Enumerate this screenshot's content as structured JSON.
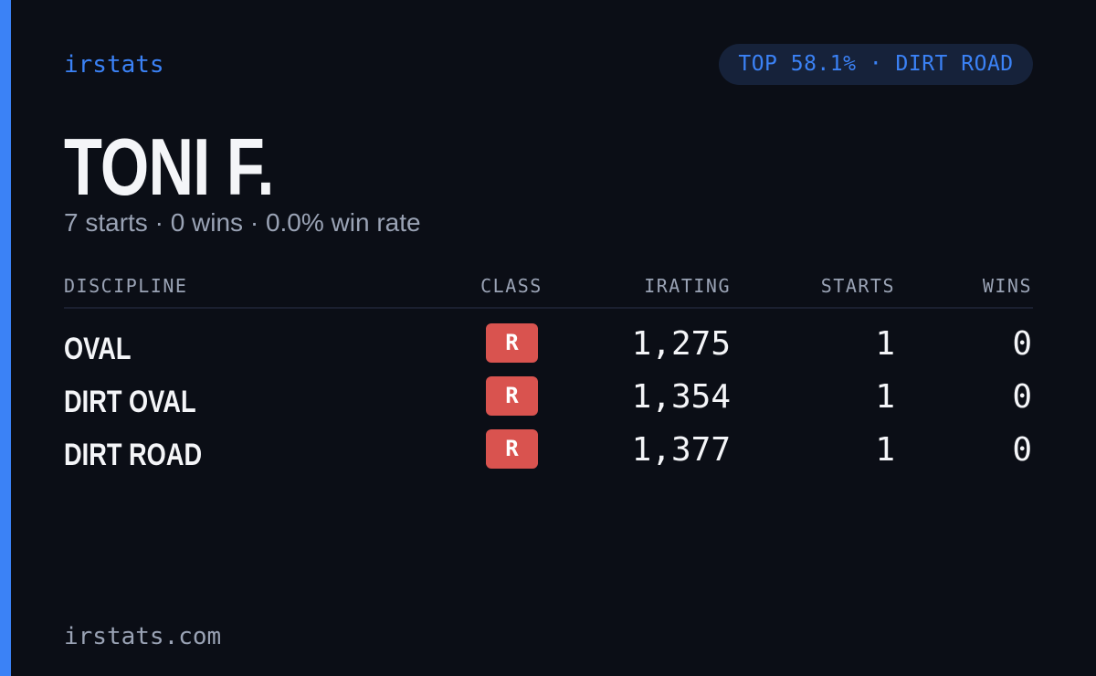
{
  "brand": "irstats",
  "badge": "TOP 58.1% · DIRT ROAD",
  "name": "TONI F.",
  "summary": "7 starts · 0 wins · 0.0% win rate",
  "table": {
    "columns": [
      "DISCIPLINE",
      "CLASS",
      "IRATING",
      "STARTS",
      "WINS"
    ],
    "rows": [
      [
        "OVAL",
        "R",
        "1,275",
        "1",
        "0"
      ],
      [
        "DIRT OVAL",
        "R",
        "1,354",
        "1",
        "0"
      ],
      [
        "DIRT ROAD",
        "R",
        "1,377",
        "1",
        "0"
      ]
    ]
  },
  "footer": "irstats.com"
}
